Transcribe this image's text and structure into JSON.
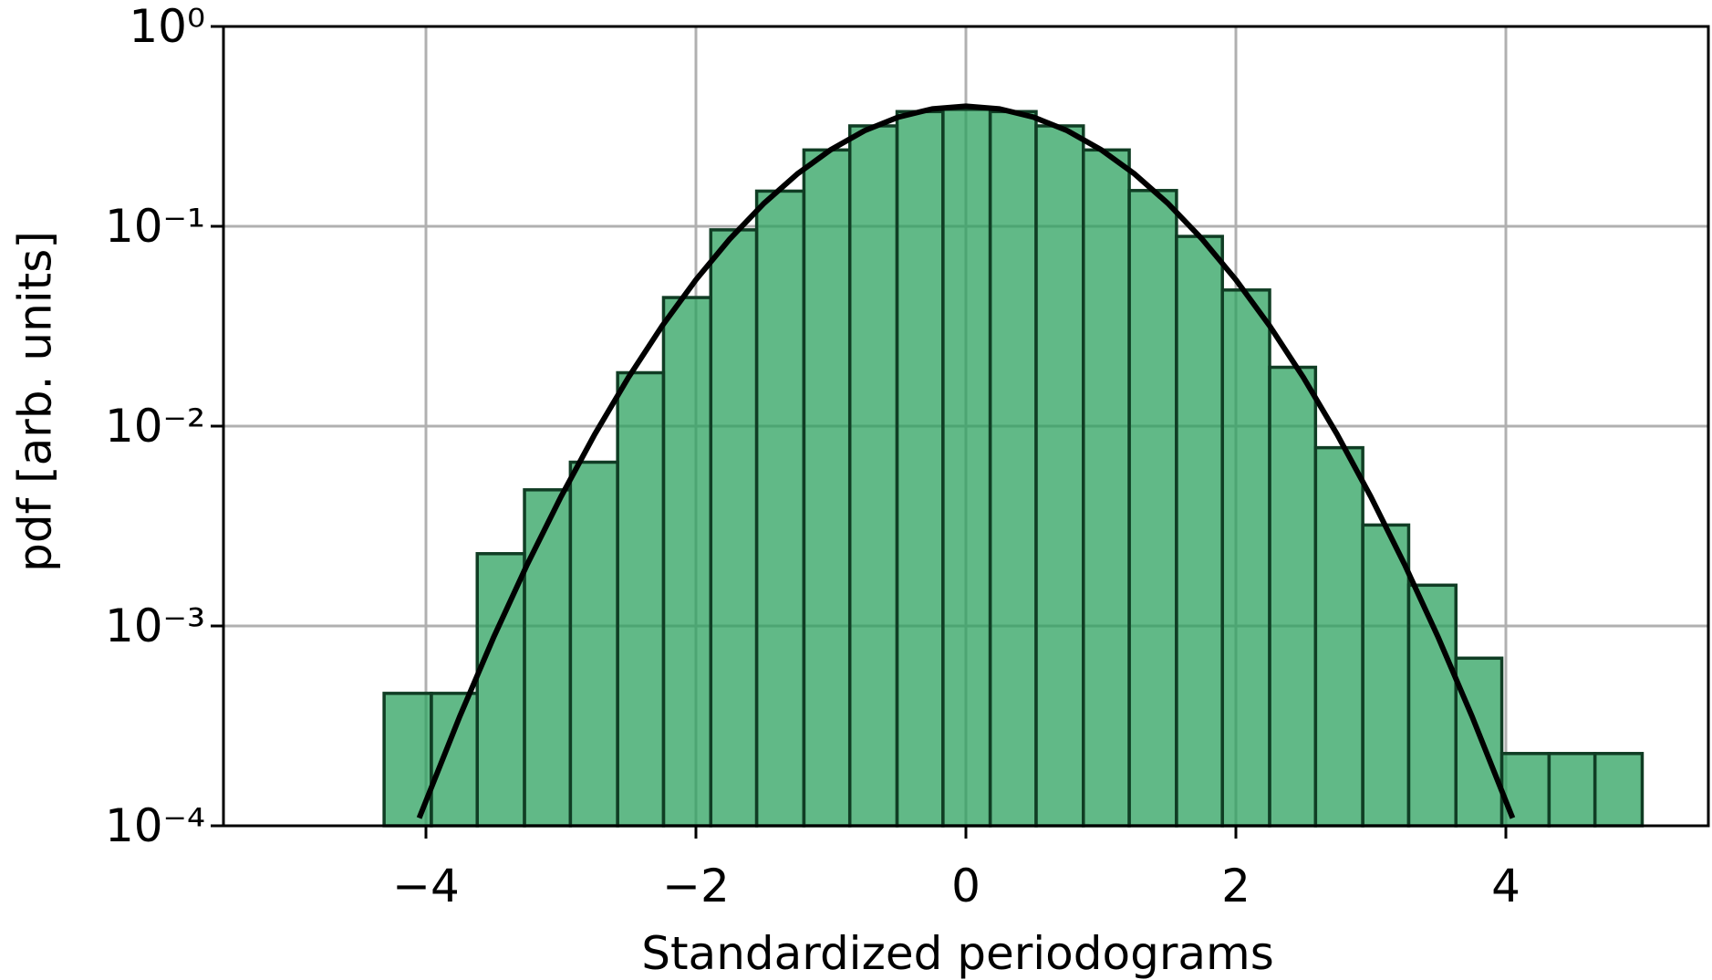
{
  "chart_data": {
    "type": "histogram",
    "xlabel": "Standardized periodograms",
    "ylabel": "pdf [arb. units]",
    "bins": [
      -4.31,
      -3.96,
      -3.62,
      -3.27,
      -2.93,
      -2.58,
      -2.24,
      -1.89,
      -1.55,
      -1.2,
      -0.86,
      -0.51,
      -0.17,
      0.18,
      0.52,
      0.87,
      1.21,
      1.56,
      1.9,
      2.25,
      2.59,
      2.94,
      3.28,
      3.63,
      3.97,
      4.32,
      4.66,
      5.01
    ],
    "values": [
      0.00046,
      0.00046,
      0.0023,
      0.0048,
      0.0066,
      0.0185,
      0.044,
      0.096,
      0.15,
      0.241,
      0.318,
      0.375,
      0.385,
      0.375,
      0.318,
      0.241,
      0.151,
      0.089,
      0.048,
      0.0197,
      0.0078,
      0.0032,
      0.0016,
      0.00069,
      0.00023,
      0.00023,
      0.00023
    ],
    "color": "#2ca25f",
    "edgecolor": "#103d24",
    "curve": {
      "color": "#000000",
      "x": [
        -4.05,
        -3.75,
        -3.5,
        -3.25,
        -3,
        -2.75,
        -2.5,
        -2.25,
        -2,
        -1.75,
        -1.5,
        -1.25,
        -1,
        -0.75,
        -0.5,
        -0.25,
        0,
        0.25,
        0.5,
        0.75,
        1,
        1.25,
        1.5,
        1.75,
        2,
        2.25,
        2.5,
        2.75,
        3,
        3.25,
        3.5,
        3.75,
        4.05
      ],
      "values": [
        0.0001093,
        0.000352,
        0.000873,
        0.00203,
        0.00443,
        0.00909,
        0.01753,
        0.03174,
        0.05399,
        0.08628,
        0.12952,
        0.18265,
        0.24197,
        0.30114,
        0.35207,
        0.38667,
        0.39894,
        0.38667,
        0.35207,
        0.30114,
        0.24197,
        0.18265,
        0.12952,
        0.08628,
        0.05399,
        0.03174,
        0.01753,
        0.00909,
        0.00443,
        0.00203,
        0.000873,
        0.000352,
        0.0001093
      ]
    },
    "xlim": [
      -5.5,
      5.5
    ],
    "ylim": [
      0.0001,
      1
    ],
    "yscale": "log",
    "grid": true,
    "xticks": [
      {
        "value": -4,
        "label": "−4"
      },
      {
        "value": -2,
        "label": "−2"
      },
      0,
      2,
      4
    ],
    "yticks": [
      {
        "value": 0.0001,
        "label": "10⁻⁴"
      },
      {
        "value": 0.001,
        "label": "10⁻³"
      },
      {
        "value": 0.01,
        "label": "10⁻²"
      },
      {
        "value": 0.1,
        "label": "10⁻¹"
      },
      {
        "value": 1,
        "label": "10⁰"
      }
    ]
  }
}
